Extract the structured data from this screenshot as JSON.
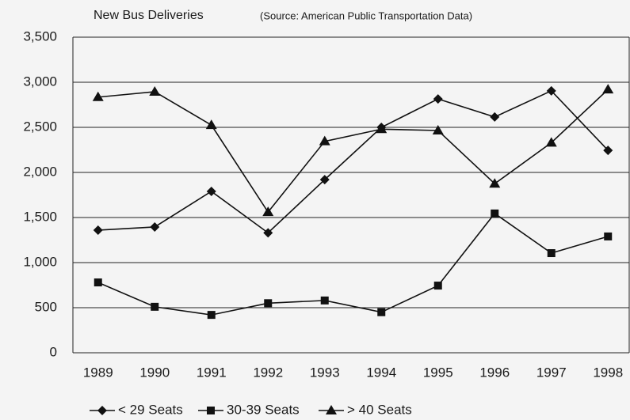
{
  "chart_data": {
    "type": "line",
    "title": "New Bus Deliveries",
    "subtitle": "(Source: American Public Transportation Data)",
    "categories": [
      "1989",
      "1990",
      "1991",
      "1992",
      "1993",
      "1994",
      "1995",
      "1996",
      "1997",
      "1998"
    ],
    "series": [
      {
        "name": "< 29 Seats",
        "color": "#111111",
        "marker": "diamond",
        "values": [
          1360,
          1395,
          1790,
          1330,
          1920,
          2500,
          2815,
          2615,
          2905,
          2245
        ]
      },
      {
        "name": "30-39 Seats",
        "color": "#111111",
        "marker": "square",
        "values": [
          780,
          510,
          420,
          550,
          580,
          450,
          745,
          1545,
          1105,
          1290
        ]
      },
      {
        "name": "> 40 Seats",
        "color": "#111111",
        "marker": "triangle",
        "values": [
          2835,
          2895,
          2525,
          1560,
          2345,
          2480,
          2465,
          1875,
          2330,
          2920
        ]
      }
    ],
    "ylim": [
      0,
      3500
    ],
    "yticks": [
      0,
      500,
      {
        "value": 1000,
        "label": "1,000"
      },
      {
        "value": 1500,
        "label": "1,500"
      },
      {
        "value": 2000,
        "label": "2,000"
      },
      {
        "value": 2500,
        "label": "2,500"
      },
      {
        "value": 3000,
        "label": "3,000"
      },
      {
        "value": 3500,
        "label": "3,500"
      }
    ],
    "grid": true,
    "legend": "bottom"
  }
}
